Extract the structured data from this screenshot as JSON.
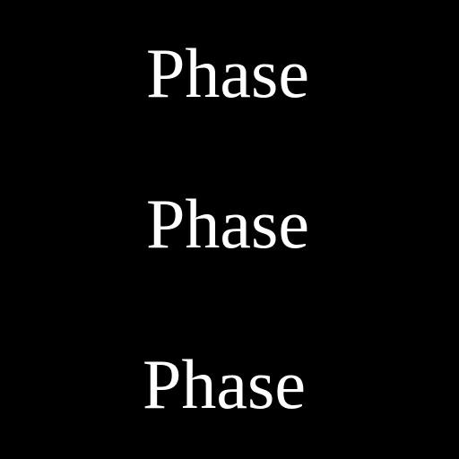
{
  "colors": {
    "background": "#000000",
    "text": "#ffffff"
  },
  "words": [
    {
      "text": "Phase"
    },
    {
      "text": "Phase"
    },
    {
      "text": "Phase"
    }
  ]
}
